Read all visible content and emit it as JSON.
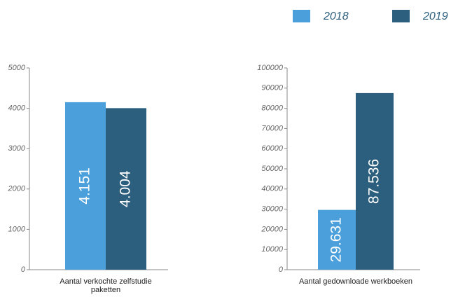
{
  "legend": [
    {
      "name": "2018",
      "color": "#4ba0dc"
    },
    {
      "name": "2019",
      "color": "#2c5f7e"
    }
  ],
  "chart_data": [
    {
      "type": "bar",
      "categories": [
        "Aantal verkochte zelfstudie paketten"
      ],
      "series": [
        {
          "values": [
            4151
          ],
          "value_labels": [
            "4.151"
          ]
        },
        {
          "values": [
            4004
          ],
          "value_labels": [
            "4.004"
          ]
        }
      ],
      "ylim": [
        0,
        5000
      ],
      "yticks": [
        0,
        1000,
        2000,
        3000,
        4000,
        5000
      ]
    },
    {
      "type": "bar",
      "categories": [
        "Aantal gedownloade werkboeken"
      ],
      "series": [
        {
          "values": [
            29631
          ],
          "value_labels": [
            "29.631"
          ]
        },
        {
          "values": [
            87536
          ],
          "value_labels": [
            "87.536"
          ]
        }
      ],
      "ylim": [
        0,
        100000
      ],
      "yticks": [
        0,
        10000,
        20000,
        30000,
        40000,
        50000,
        60000,
        70000,
        80000,
        90000,
        100000
      ]
    }
  ]
}
